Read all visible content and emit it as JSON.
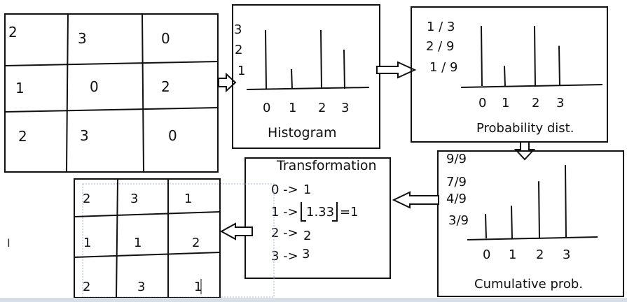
{
  "input_grid": {
    "cells": [
      [
        "2",
        "3",
        "0"
      ],
      [
        "1",
        "0",
        "2"
      ],
      [
        "2",
        "3",
        "0"
      ]
    ]
  },
  "histogram": {
    "title": "Histogram",
    "y_labels": [
      "3",
      "2",
      "1"
    ],
    "x_labels": [
      "0",
      "1",
      "2",
      "3"
    ],
    "counts": [
      3,
      1,
      3,
      2
    ]
  },
  "probability": {
    "title": "Probability dist.",
    "y_labels": [
      "1 / 3",
      "2 / 9",
      "1 / 9"
    ],
    "x_labels": [
      "0",
      "1",
      "2",
      "3"
    ],
    "values": [
      0.333,
      0.111,
      0.333,
      0.222
    ]
  },
  "cumulative": {
    "title": "Cumulative prob.",
    "y_labels": [
      "9/9",
      "7/9",
      "4/9",
      "3/9"
    ],
    "x_labels": [
      "0",
      "1",
      "2",
      "3"
    ],
    "values": [
      0.333,
      0.444,
      0.778,
      1.0
    ]
  },
  "transformation": {
    "title": "Transformation",
    "rules": [
      {
        "lhs": "0 ->",
        "rhs": "1"
      },
      {
        "lhs": "1 ->",
        "rhs": "1.33",
        "tail": "=1"
      },
      {
        "lhs": "2 ->",
        "rhs": "2"
      },
      {
        "lhs": "3 ->",
        "rhs": "3"
      }
    ]
  },
  "output_grid": {
    "cells": [
      [
        "2",
        "3",
        "1"
      ],
      [
        "1",
        "1",
        "2"
      ],
      [
        "2",
        "3",
        "1"
      ]
    ]
  },
  "cursor_glyph": "I"
}
